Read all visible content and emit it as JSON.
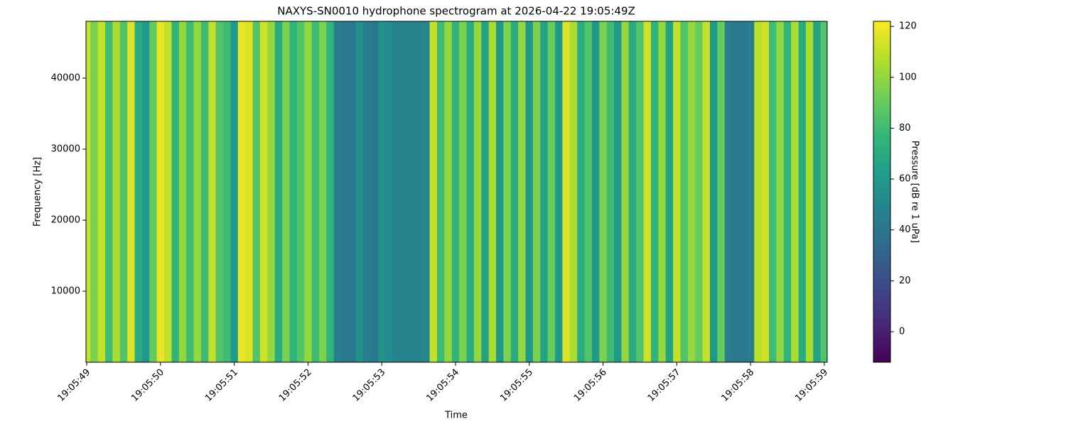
{
  "chart_data": {
    "type": "spectrogram",
    "title": "NAXYS-SN0010 hydrophone spectrogram at 2026-04-22 19:05:49Z",
    "x_label": "Time",
    "y_label": "Frequency [Hz]",
    "colorbar_label": "Pressure [dB re 1 uPa]",
    "colormap": "viridis",
    "x": [
      49.0,
      49.1,
      49.2,
      49.3,
      49.4,
      49.5,
      49.6,
      49.7,
      49.8,
      49.9,
      50.0,
      50.1,
      50.2,
      50.3,
      50.4,
      50.5,
      50.6,
      50.7,
      50.8,
      50.9,
      51.0,
      51.1,
      51.2,
      51.3,
      51.4,
      51.5,
      51.6,
      51.7,
      51.8,
      51.9,
      52.0,
      52.1,
      52.2,
      52.3,
      52.4,
      52.5,
      52.6,
      52.7,
      52.8,
      52.9,
      53.0,
      53.1,
      53.2,
      53.3,
      53.4,
      53.5,
      53.6,
      53.7,
      53.8,
      53.9,
      54.0,
      54.1,
      54.2,
      54.3,
      54.4,
      54.5,
      54.6,
      54.7,
      54.8,
      54.9,
      55.0,
      55.1,
      55.2,
      55.3,
      55.4,
      55.5,
      55.6,
      55.7,
      55.8,
      55.9,
      56.0,
      56.1,
      56.2,
      56.3,
      56.4,
      56.5,
      56.6,
      56.7,
      56.8,
      56.9,
      57.0,
      57.1,
      57.2,
      57.3,
      57.4,
      57.5,
      57.6,
      57.7,
      57.8,
      57.9,
      58.0,
      58.1,
      58.2,
      58.3,
      58.4,
      58.5,
      58.6,
      58.7,
      58.8,
      58.9,
      59.0
    ],
    "values": [
      110,
      95,
      110,
      80,
      105,
      85,
      115,
      70,
      60,
      90,
      118,
      110,
      75,
      100,
      80,
      100,
      80,
      110,
      85,
      80,
      60,
      118,
      115,
      85,
      112,
      100,
      70,
      95,
      75,
      85,
      100,
      80,
      95,
      75,
      45,
      42,
      42,
      55,
      45,
      42,
      55,
      52,
      48,
      48,
      48,
      48,
      50,
      110,
      80,
      100,
      75,
      95,
      70,
      100,
      65,
      105,
      60,
      95,
      70,
      100,
      60,
      95,
      65,
      90,
      60,
      115,
      105,
      70,
      85,
      60,
      95,
      80,
      60,
      100,
      70,
      85,
      112,
      75,
      100,
      65,
      110,
      85,
      100,
      90,
      110,
      60,
      90,
      45,
      42,
      42,
      45,
      108,
      112,
      80,
      100,
      75,
      105,
      70,
      105,
      65,
      85
    ],
    "xlim": [
      48.99,
      59.04
    ],
    "xticks": [
      {
        "value": 49,
        "label": "19:05:49"
      },
      {
        "value": 50,
        "label": "19:05:50"
      },
      {
        "value": 51,
        "label": "19:05:51"
      },
      {
        "value": 52,
        "label": "19:05:52"
      },
      {
        "value": 53,
        "label": "19:05:53"
      },
      {
        "value": 54,
        "label": "19:05:54"
      },
      {
        "value": 55,
        "label": "19:05:55"
      },
      {
        "value": 56,
        "label": "19:05:56"
      },
      {
        "value": 57,
        "label": "19:05:57"
      },
      {
        "value": 58,
        "label": "19:05:58"
      },
      {
        "value": 59,
        "label": "19:05:59"
      }
    ],
    "ylim": [
      0,
      48000
    ],
    "yticks": [
      10000,
      20000,
      30000,
      40000
    ],
    "clim": [
      -12,
      122
    ],
    "cticks": [
      0,
      20,
      40,
      60,
      80,
      100,
      120
    ]
  }
}
